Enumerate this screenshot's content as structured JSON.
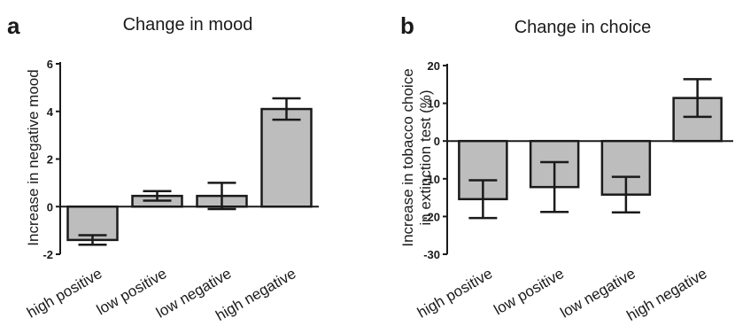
{
  "colors": {
    "bar_fill": "#bdbdbd",
    "ink": "#1a1a1a"
  },
  "chart_data": [
    {
      "type": "bar",
      "panel": "a",
      "title": "Change in mood",
      "xlabel": "",
      "ylabel": "Increase in negative mood",
      "categories": [
        "high positive",
        "low positive",
        "low negative",
        "high negative"
      ],
      "values": [
        -1.4,
        0.45,
        0.45,
        4.1
      ],
      "error": [
        0.2,
        0.2,
        0.55,
        0.45
      ],
      "ylim": [
        -2,
        6
      ],
      "yticks": [
        -2,
        0,
        2,
        4,
        6
      ],
      "ytick_labels": [
        "-2",
        "0",
        "2",
        "4",
        "6"
      ],
      "grid": false
    },
    {
      "type": "bar",
      "panel": "b",
      "title": "Change in choice",
      "xlabel": "",
      "ylabel": [
        "Increase in tobacco choice",
        "in extinction test (%)"
      ],
      "categories": [
        "high positive",
        "low positive",
        "low negative",
        "high negative"
      ],
      "values": [
        -15.4,
        -12.2,
        -14.2,
        11.4
      ],
      "error": [
        5,
        6.6,
        4.7,
        5
      ],
      "ylim": [
        -30,
        20
      ],
      "yticks": [
        -30,
        -20,
        -10,
        0,
        10,
        20
      ],
      "ytick_labels": [
        "-30",
        "-20",
        "-10",
        "0",
        "10",
        "20"
      ],
      "grid": false
    }
  ]
}
